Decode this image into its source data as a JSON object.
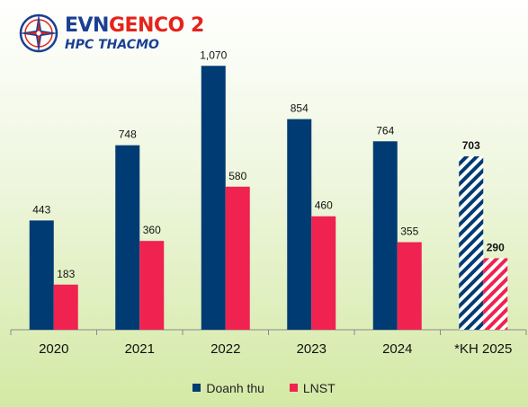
{
  "logo": {
    "brand_evn": "EVN",
    "brand_genco": "GENCO 2",
    "subtitle": "HPC THACMO"
  },
  "colors": {
    "revenue": "#003b73",
    "profit": "#f0224f",
    "logo_blue": "#1b3f93",
    "logo_red": "#e5231b"
  },
  "chart_data": {
    "type": "bar",
    "categories": [
      "2020",
      "2021",
      "2022",
      "2023",
      "2024",
      "*KH 2025"
    ],
    "series": [
      {
        "name": "Doanh thu",
        "values": [
          443,
          748,
          1070,
          854,
          764,
          703
        ],
        "labels": [
          "443",
          "748",
          "1,070",
          "854",
          "764",
          "703"
        ],
        "color": "#003b73"
      },
      {
        "name": "LNST",
        "values": [
          183,
          360,
          580,
          460,
          355,
          290
        ],
        "labels": [
          "183",
          "360",
          "580",
          "460",
          "355",
          "290"
        ],
        "color": "#f0224f"
      }
    ],
    "hatched_categories": [
      "*KH 2025"
    ],
    "ylim": [
      0,
      1200
    ],
    "grid": false,
    "legend_position": "bottom"
  }
}
